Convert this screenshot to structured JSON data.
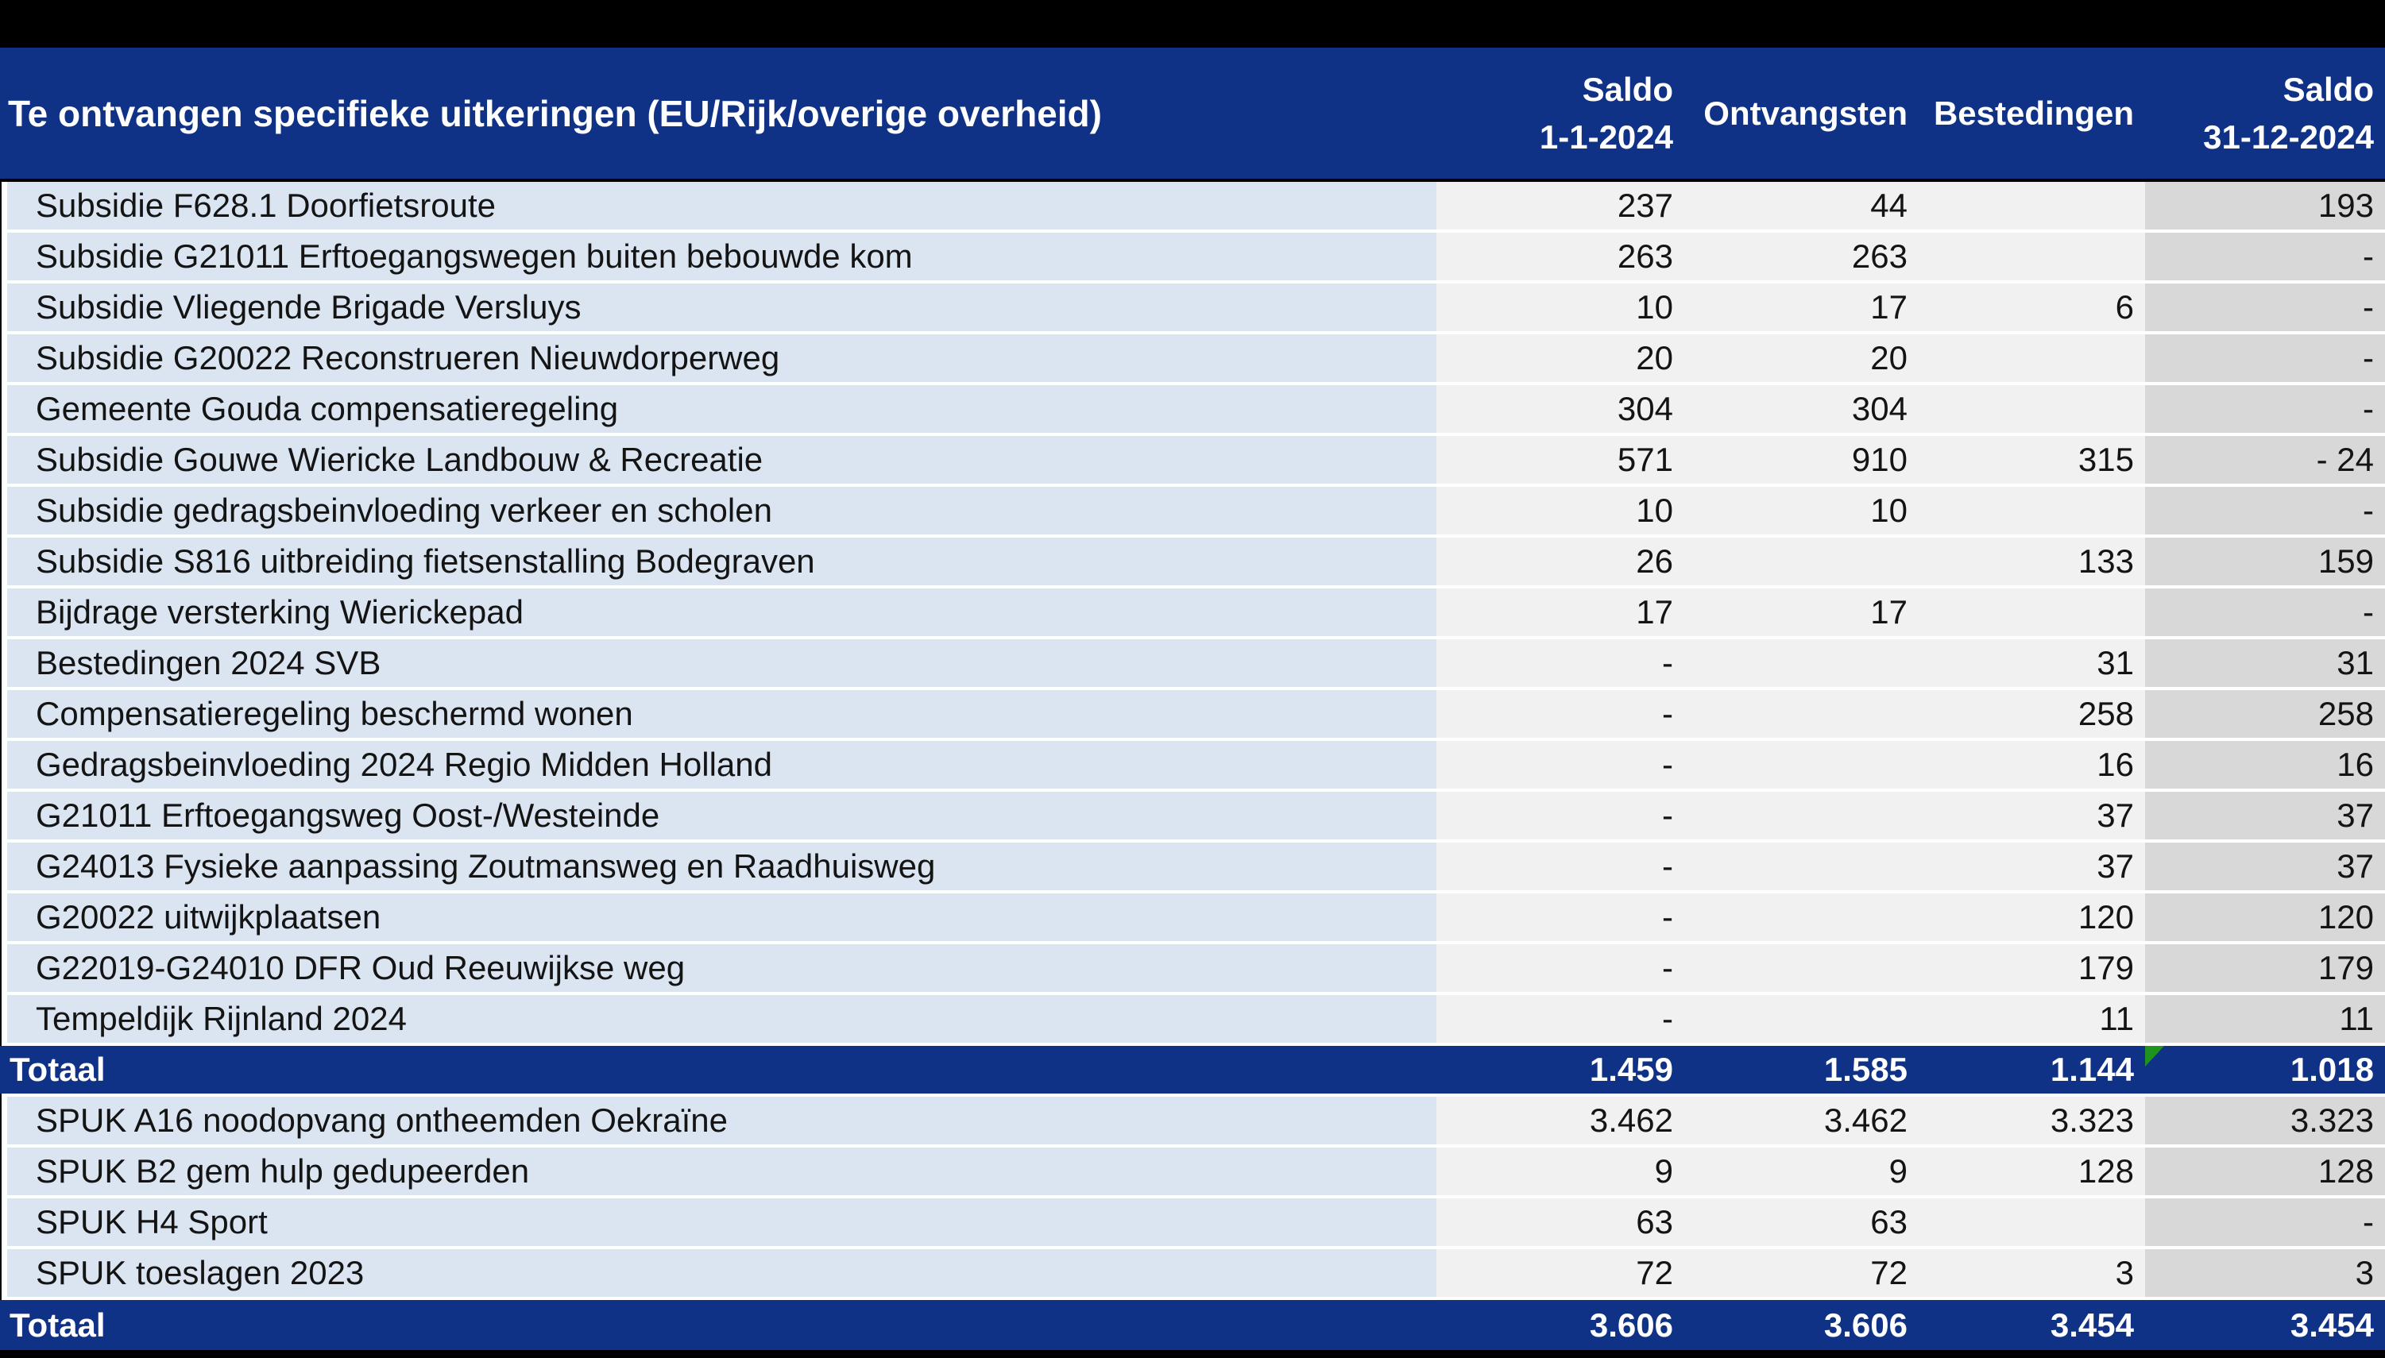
{
  "colors": {
    "accent_blue": "#0f3287",
    "header_text": "#ffffff",
    "name_column_bg": "#dbe5f1",
    "value_column_bg": "#f1f1f2",
    "saldo_end_column_bg": "#d8d8d8",
    "flag_green": "#1e941e",
    "frame_black": "#000000"
  },
  "header": {
    "title": "Te ontvangen specifieke uitkeringen (EU/Rijk/overige overheid)",
    "columns": [
      {
        "line1": "Saldo",
        "line2": "1-1-2024"
      },
      {
        "line1": "Ontvangsten",
        "line2": ""
      },
      {
        "line1": "Bestedingen",
        "line2": ""
      },
      {
        "line1": "Saldo",
        "line2": "31-12-2024"
      }
    ]
  },
  "table": {
    "rows": [
      {
        "type": "data",
        "name": "Subsidie F628.1 Doorfietsroute",
        "saldo_1_1": "237",
        "ontvangsten": "44",
        "bestedingen": "",
        "saldo_31_12": "193",
        "flag": false
      },
      {
        "type": "data",
        "name": "Subsidie G21011 Erftoegangswegen buiten bebouwde kom",
        "saldo_1_1": "263",
        "ontvangsten": "263",
        "bestedingen": "",
        "saldo_31_12": "-",
        "flag": false
      },
      {
        "type": "data",
        "name": "Subsidie Vliegende Brigade Versluys",
        "saldo_1_1": "10",
        "ontvangsten": "17",
        "bestedingen": "6",
        "saldo_31_12": "-",
        "flag": false
      },
      {
        "type": "data",
        "name": "Subsidie G20022 Reconstrueren Nieuwdorperweg",
        "saldo_1_1": "20",
        "ontvangsten": "20",
        "bestedingen": "",
        "saldo_31_12": "-",
        "flag": false
      },
      {
        "type": "data",
        "name": "Gemeente Gouda compensatieregeling",
        "saldo_1_1": "304",
        "ontvangsten": "304",
        "bestedingen": "",
        "saldo_31_12": "-",
        "flag": false
      },
      {
        "type": "data",
        "name": "Subsidie Gouwe Wiericke Landbouw & Recreatie",
        "saldo_1_1": "571",
        "ontvangsten": "910",
        "bestedingen": "315",
        "saldo_31_12": "- 24",
        "flag": false
      },
      {
        "type": "data",
        "name": "Subsidie gedragsbeinvloeding verkeer en scholen",
        "saldo_1_1": "10",
        "ontvangsten": "10",
        "bestedingen": "",
        "saldo_31_12": "-",
        "flag": false
      },
      {
        "type": "data",
        "name": "Subsidie S816 uitbreiding fietsenstalling Bodegraven",
        "saldo_1_1": "26",
        "ontvangsten": "",
        "bestedingen": "133",
        "saldo_31_12": "159",
        "flag": false
      },
      {
        "type": "data",
        "name": "Bijdrage versterking Wierickepad",
        "saldo_1_1": "17",
        "ontvangsten": "17",
        "bestedingen": "",
        "saldo_31_12": "-",
        "flag": false
      },
      {
        "type": "data",
        "name": "Bestedingen 2024 SVB",
        "saldo_1_1": "-",
        "ontvangsten": "",
        "bestedingen": "31",
        "saldo_31_12": "31",
        "flag": false
      },
      {
        "type": "data",
        "name": "Compensatieregeling beschermd wonen",
        "saldo_1_1": "-",
        "ontvangsten": "",
        "bestedingen": "258",
        "saldo_31_12": "258",
        "flag": false
      },
      {
        "type": "data",
        "name": "Gedragsbeinvloeding 2024 Regio Midden Holland",
        "saldo_1_1": "-",
        "ontvangsten": "",
        "bestedingen": "16",
        "saldo_31_12": "16",
        "flag": false
      },
      {
        "type": "data",
        "name": "G21011 Erftoegangsweg Oost-/Westeinde",
        "saldo_1_1": "-",
        "ontvangsten": "",
        "bestedingen": "37",
        "saldo_31_12": "37",
        "flag": false
      },
      {
        "type": "data",
        "name": "G24013 Fysieke aanpassing Zoutmansweg en Raadhuisweg",
        "saldo_1_1": "-",
        "ontvangsten": "",
        "bestedingen": "37",
        "saldo_31_12": "37",
        "flag": false
      },
      {
        "type": "data",
        "name": "G20022 uitwijkplaatsen",
        "saldo_1_1": "-",
        "ontvangsten": "",
        "bestedingen": "120",
        "saldo_31_12": "120",
        "flag": false
      },
      {
        "type": "data",
        "name": "G22019-G24010 DFR Oud Reeuwijkse weg",
        "saldo_1_1": "-",
        "ontvangsten": "",
        "bestedingen": "179",
        "saldo_31_12": "179",
        "flag": false
      },
      {
        "type": "data",
        "name": "Tempeldijk Rijnland 2024",
        "saldo_1_1": "-",
        "ontvangsten": "",
        "bestedingen": "11",
        "saldo_31_12": "11",
        "flag": false
      },
      {
        "type": "total",
        "name": "Totaal",
        "saldo_1_1": "1.459",
        "ontvangsten": "1.585",
        "bestedingen": "1.144",
        "saldo_31_12": "1.018",
        "flag": true
      },
      {
        "type": "data",
        "name": "SPUK A16 noodopvang ontheemden Oekraïne",
        "saldo_1_1": "3.462",
        "ontvangsten": "3.462",
        "bestedingen": "3.323",
        "saldo_31_12": "3.323",
        "flag": false
      },
      {
        "type": "data",
        "name": "SPUK B2 gem hulp gedupeerden",
        "saldo_1_1": "9",
        "ontvangsten": "9",
        "bestedingen": "128",
        "saldo_31_12": "128",
        "flag": false
      },
      {
        "type": "data",
        "name": "SPUK H4 Sport",
        "saldo_1_1": "63",
        "ontvangsten": "63",
        "bestedingen": "",
        "saldo_31_12": "-",
        "flag": false
      },
      {
        "type": "data",
        "name": "SPUK toeslagen 2023",
        "saldo_1_1": "72",
        "ontvangsten": "72",
        "bestedingen": "3",
        "saldo_31_12": "3",
        "flag": false
      },
      {
        "type": "total",
        "name": "Totaal",
        "saldo_1_1": "3.606",
        "ontvangsten": "3.606",
        "bestedingen": "3.454",
        "saldo_31_12": "3.454",
        "flag": false
      }
    ]
  }
}
